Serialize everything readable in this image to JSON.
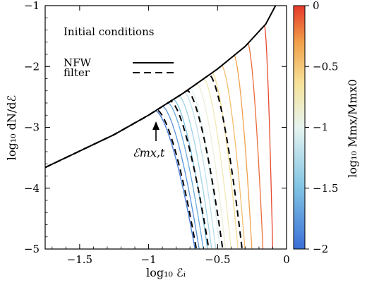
{
  "chart_data": {
    "type": "line",
    "xlabel": "log₁₀ ℰᵢ",
    "ylabel": "log₁₀ dN/dℰ",
    "xlim": [
      -1.75,
      0.0
    ],
    "ylim": [
      -5.0,
      -1.0
    ],
    "x_ticks": [
      -1.5,
      -1.0,
      -0.5,
      0.0
    ],
    "x_tick_labels": [
      "−1.5",
      "−1",
      "−0.5",
      "0"
    ],
    "y_ticks": [
      -5,
      -4,
      -3,
      -2,
      -1
    ],
    "y_tick_labels": [
      "−5",
      "−4",
      "−3",
      "−2",
      "−1"
    ],
    "grid": false,
    "legend": {
      "title": "Initial conditions",
      "entries": [
        {
          "label": "NFW",
          "style": "solid"
        },
        {
          "label": "filter",
          "style": "dashed"
        }
      ],
      "placement": "top-left"
    },
    "annotation": {
      "text": "ℰmx,t",
      "x": -0.94,
      "y": -3.1
    },
    "colorbar": {
      "label": "log₁₀ Mmx/Mmx0",
      "range": [
        -2,
        0
      ],
      "ticks": [
        0,
        -0.5,
        -1,
        -1.5,
        -2
      ],
      "tick_labels": [
        "0",
        "−0.5",
        "−1",
        "−1.5",
        "−2"
      ],
      "colors": [
        "#3a6fd6",
        "#7fc3e3",
        "#e6f4f0",
        "#f6e29a",
        "#f0a04a",
        "#e5372a"
      ]
    },
    "nfw_curve": {
      "name": "NFW",
      "x": [
        -1.75,
        -1.5,
        -1.25,
        -1.0,
        -0.75,
        -0.5,
        -0.3,
        -0.15,
        -0.08
      ],
      "y": [
        -3.66,
        -3.39,
        -3.12,
        -2.8,
        -2.44,
        -2.04,
        -1.67,
        -1.3,
        -1.0
      ]
    },
    "filter_curves": [
      {
        "name": "filter",
        "x_peak": -0.94,
        "x_end": -0.65
      },
      {
        "name": "filter",
        "x_peak": -0.84,
        "x_end": -0.56
      },
      {
        "name": "filter",
        "x_peak": -0.72,
        "x_end": -0.46
      },
      {
        "name": "filter",
        "x_peak": -0.56,
        "x_end": -0.32
      }
    ],
    "evolved_series": {
      "log_mmx_ratio": [
        -1.95,
        -1.8,
        -1.65,
        -1.5,
        -1.35,
        -1.2,
        -1.05,
        -0.9,
        -0.75,
        -0.6,
        -0.45,
        -0.3,
        -0.15,
        -0.05
      ],
      "x_peak": [
        -0.95,
        -0.9,
        -0.86,
        -0.82,
        -0.78,
        -0.74,
        -0.7,
        -0.65,
        -0.6,
        -0.54,
        -0.47,
        -0.38,
        -0.28,
        -0.16
      ],
      "x_end": [
        -0.66,
        -0.63,
        -0.6,
        -0.57,
        -0.54,
        -0.51,
        -0.48,
        -0.44,
        -0.4,
        -0.35,
        -0.3,
        -0.25,
        -0.17,
        -0.1
      ]
    }
  }
}
